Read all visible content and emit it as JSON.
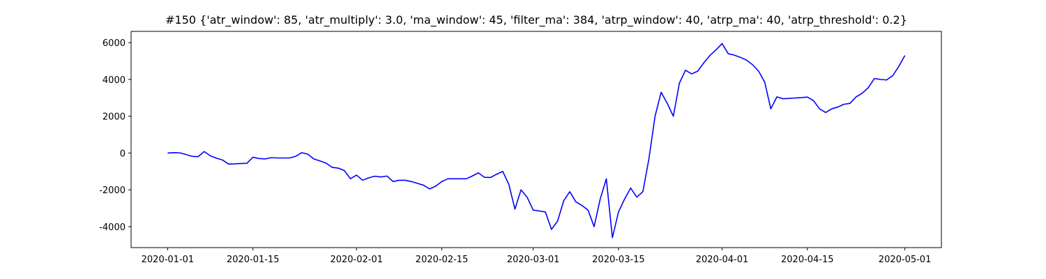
{
  "chart_data": {
    "type": "line",
    "title": "#150 {'atr_window': 85, 'atr_multiply': 3.0, 'ma_window': 45, 'filter_ma': 384, 'atrp_window': 40, 'atrp_ma': 40, 'atrp_threshold': 0.2}",
    "x": [
      "2020-01-01",
      "2020-01-02",
      "2020-01-03",
      "2020-01-04",
      "2020-01-05",
      "2020-01-06",
      "2020-01-07",
      "2020-01-08",
      "2020-01-09",
      "2020-01-10",
      "2020-01-11",
      "2020-01-12",
      "2020-01-13",
      "2020-01-14",
      "2020-01-15",
      "2020-01-16",
      "2020-01-17",
      "2020-01-18",
      "2020-01-19",
      "2020-01-20",
      "2020-01-21",
      "2020-01-22",
      "2020-01-23",
      "2020-01-24",
      "2020-01-25",
      "2020-01-26",
      "2020-01-27",
      "2020-01-28",
      "2020-01-29",
      "2020-01-30",
      "2020-01-31",
      "2020-02-01",
      "2020-02-02",
      "2020-02-03",
      "2020-02-04",
      "2020-02-05",
      "2020-02-06",
      "2020-02-07",
      "2020-02-08",
      "2020-02-09",
      "2020-02-10",
      "2020-02-11",
      "2020-02-12",
      "2020-02-13",
      "2020-02-14",
      "2020-02-15",
      "2020-02-16",
      "2020-02-17",
      "2020-02-18",
      "2020-02-19",
      "2020-02-20",
      "2020-02-21",
      "2020-02-22",
      "2020-02-23",
      "2020-02-24",
      "2020-02-25",
      "2020-02-26",
      "2020-02-27",
      "2020-02-28",
      "2020-02-29",
      "2020-03-01",
      "2020-03-02",
      "2020-03-03",
      "2020-03-04",
      "2020-03-05",
      "2020-03-06",
      "2020-03-07",
      "2020-03-08",
      "2020-03-09",
      "2020-03-10",
      "2020-03-11",
      "2020-03-12",
      "2020-03-13",
      "2020-03-14",
      "2020-03-15",
      "2020-03-16",
      "2020-03-17",
      "2020-03-18",
      "2020-03-19",
      "2020-03-20",
      "2020-03-21",
      "2020-03-22",
      "2020-03-23",
      "2020-03-24",
      "2020-03-25",
      "2020-03-26",
      "2020-03-27",
      "2020-03-28",
      "2020-03-29",
      "2020-03-30",
      "2020-03-31",
      "2020-04-01",
      "2020-04-02",
      "2020-04-03",
      "2020-04-04",
      "2020-04-05",
      "2020-04-06",
      "2020-04-07",
      "2020-04-08",
      "2020-04-09",
      "2020-04-10",
      "2020-04-11",
      "2020-04-12",
      "2020-04-13",
      "2020-04-14",
      "2020-04-15",
      "2020-04-16",
      "2020-04-17",
      "2020-04-18",
      "2020-04-19",
      "2020-04-20",
      "2020-04-21",
      "2020-04-22",
      "2020-04-23",
      "2020-04-24",
      "2020-04-25",
      "2020-04-26",
      "2020-04-27",
      "2020-04-28",
      "2020-04-29",
      "2020-04-30",
      "2020-05-01"
    ],
    "series": [
      {
        "color": "#0000ff",
        "values": [
          0,
          20,
          10,
          -80,
          -180,
          -200,
          80,
          -150,
          -280,
          -380,
          -600,
          -590,
          -570,
          -560,
          -230,
          -300,
          -320,
          -250,
          -270,
          -270,
          -270,
          -180,
          20,
          -60,
          -320,
          -430,
          -550,
          -780,
          -820,
          -950,
          -1400,
          -1200,
          -1480,
          -1350,
          -1260,
          -1300,
          -1250,
          -1550,
          -1480,
          -1480,
          -1550,
          -1650,
          -1750,
          -1950,
          -1800,
          -1550,
          -1400,
          -1400,
          -1400,
          -1400,
          -1250,
          -1080,
          -1320,
          -1330,
          -1150,
          -1000,
          -1700,
          -3050,
          -2000,
          -2400,
          -3100,
          -3150,
          -3200,
          -4150,
          -3700,
          -2600,
          -2100,
          -2650,
          -2850,
          -3100,
          -4000,
          -2500,
          -1400,
          -4600,
          -3200,
          -2500,
          -1900,
          -2400,
          -2100,
          -300,
          2000,
          3300,
          2700,
          2000,
          3800,
          4500,
          4300,
          4450,
          4900,
          5300,
          5600,
          5950,
          5400,
          5320,
          5200,
          5050,
          4800,
          4450,
          3850,
          2400,
          3050,
          2950,
          2970,
          2990,
          3010,
          3040,
          2850,
          2400,
          2200,
          2400,
          2500,
          2650,
          2700,
          3050,
          3250,
          3550,
          4050,
          4000,
          3970,
          4200,
          4700,
          5300
        ]
      }
    ],
    "xlim": [
      "2019-12-26",
      "2020-05-07"
    ],
    "xticks": [
      "2020-01-01",
      "2020-01-15",
      "2020-02-01",
      "2020-02-15",
      "2020-03-01",
      "2020-03-15",
      "2020-04-01",
      "2020-04-15",
      "2020-05-01"
    ],
    "ylim": [
      -5140,
      6610
    ],
    "yticks": [
      -4000,
      -2000,
      0,
      2000,
      4000,
      6000
    ],
    "grid": false
  }
}
